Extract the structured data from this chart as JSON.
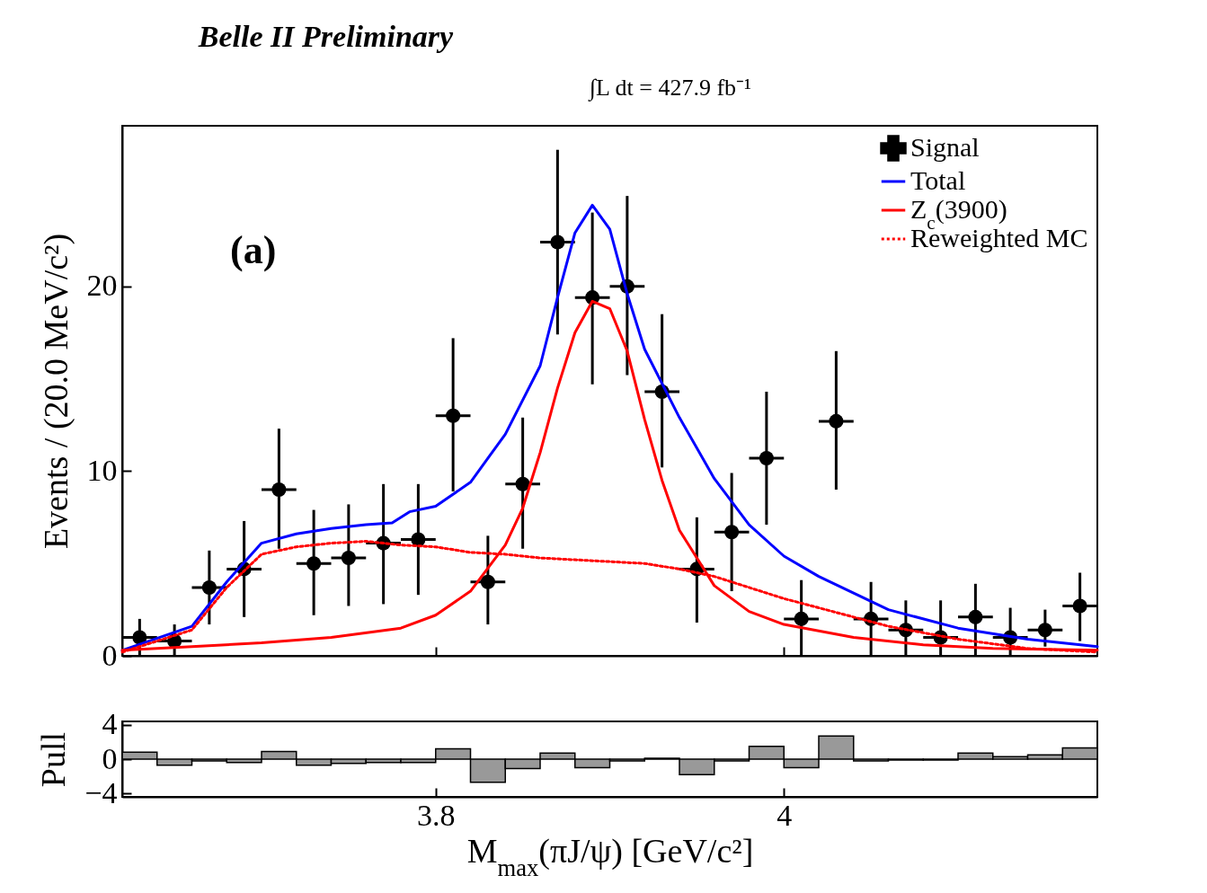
{
  "chart_data": [
    {
      "type": "scatter",
      "title": "Belle II Preliminary",
      "annotations": [
        "∫L dt = 427.9 fb⁻¹",
        "(a)"
      ],
      "ylabel": "Events / (20.0 MeV/c²)",
      "xlim": [
        3.62,
        4.18
      ],
      "xticks": [
        {
          "value": 3.8,
          "label": null
        },
        {
          "value": 4,
          "label": null
        }
      ],
      "ylim": [
        0,
        28.7
      ],
      "yticks": [
        0,
        10,
        20
      ],
      "tick_labels": "y",
      "legend": "top right",
      "series": [
        {
          "name": "Signal",
          "type": "scatter",
          "color": "#000000",
          "marker": "circle",
          "x": [
            3.63,
            3.65,
            3.67,
            3.69,
            3.71,
            3.73,
            3.75,
            3.77,
            3.79,
            3.81,
            3.83,
            3.85,
            3.87,
            3.89,
            3.91,
            3.93,
            3.95,
            3.97,
            3.99,
            4.01,
            4.03,
            4.05,
            4.07,
            4.09,
            4.11,
            4.13,
            4.15,
            4.17
          ],
          "values": [
            1.0,
            0.8,
            3.7,
            4.7,
            9.0,
            5.0,
            5.3,
            6.1,
            6.3,
            13.0,
            4.0,
            9.3,
            22.4,
            19.4,
            20.0,
            14.3,
            4.7,
            6.7,
            10.7,
            2.0,
            12.7,
            2.0,
            1.4,
            1.0,
            2.1,
            1.0,
            1.4,
            2.7
          ],
          "errors": [
            [
              0,
              2.0
            ],
            [
              0,
              1.7
            ],
            [
              1.7,
              5.7
            ],
            [
              2.1,
              7.3
            ],
            [
              5.8,
              12.3
            ],
            [
              2.2,
              7.9
            ],
            [
              2.7,
              8.2
            ],
            [
              2.8,
              9.3
            ],
            [
              3.3,
              9.3
            ],
            [
              8.9,
              17.2
            ],
            [
              1.7,
              6.5
            ],
            [
              5.8,
              12.9
            ],
            [
              17.4,
              27.4
            ],
            [
              14.7,
              24.0
            ],
            [
              15.2,
              24.9
            ],
            [
              10.2,
              18.5
            ],
            [
              1.8,
              7.5
            ],
            [
              3.5,
              9.9
            ],
            [
              7.1,
              14.3
            ],
            [
              0,
              4.1
            ],
            [
              9.0,
              16.5
            ],
            [
              0,
              4.0
            ],
            [
              0,
              3.0
            ],
            [
              0,
              3.0
            ],
            [
              0,
              3.9
            ],
            [
              0,
              2.6
            ],
            [
              0.5,
              2.5
            ],
            [
              0.8,
              4.5
            ]
          ],
          "xerrors": [
            0.01,
            0.01,
            0.01,
            0.01,
            0.01,
            0.01,
            0.01,
            0.01,
            0.01,
            0.01,
            0.01,
            0.01,
            0.01,
            0.01,
            0.01,
            0.01,
            0.01,
            0.01,
            0.01,
            0.01,
            0.01,
            0.01,
            0.01,
            0.01,
            0.01,
            0.01,
            0.01,
            0.01
          ]
        },
        {
          "name": "Total",
          "type": "line",
          "color": "#0000ff",
          "line_style": "solid",
          "x": [
            3.62,
            3.66,
            3.68,
            3.7,
            3.72,
            3.74,
            3.76,
            3.775,
            3.785,
            3.8,
            3.82,
            3.84,
            3.86,
            3.87,
            3.88,
            3.89,
            3.9,
            3.91,
            3.92,
            3.94,
            3.96,
            3.98,
            4.0,
            4.02,
            4.06,
            4.1,
            4.14,
            4.18
          ],
          "values": [
            0.3,
            1.6,
            4.0,
            6.1,
            6.6,
            6.9,
            7.1,
            7.2,
            7.8,
            8.1,
            9.4,
            12.0,
            15.7,
            19.4,
            22.9,
            24.4,
            23.1,
            19.6,
            16.6,
            12.9,
            9.6,
            7.1,
            5.4,
            4.3,
            2.5,
            1.5,
            0.9,
            0.5
          ]
        },
        {
          "name": "Z$_{c}$(3900)",
          "type": "line",
          "color": "#ff0000",
          "line_style": "solid",
          "x": [
            3.62,
            3.66,
            3.7,
            3.74,
            3.78,
            3.8,
            3.82,
            3.84,
            3.85,
            3.86,
            3.87,
            3.88,
            3.89,
            3.9,
            3.91,
            3.92,
            3.93,
            3.94,
            3.96,
            3.98,
            4.0,
            4.04,
            4.08,
            4.12,
            4.18
          ],
          "values": [
            0.3,
            0.5,
            0.7,
            1.0,
            1.5,
            2.2,
            3.5,
            6.0,
            8.0,
            11.0,
            14.5,
            17.5,
            19.2,
            18.8,
            16.5,
            12.8,
            9.5,
            6.8,
            3.8,
            2.4,
            1.7,
            1.0,
            0.6,
            0.4,
            0.3
          ]
        },
        {
          "name": "Reweighted MC",
          "type": "line",
          "color": "#ff0000",
          "line_style": "dotted",
          "x": [
            3.62,
            3.66,
            3.68,
            3.7,
            3.72,
            3.74,
            3.76,
            3.78,
            3.8,
            3.82,
            3.84,
            3.86,
            3.88,
            3.9,
            3.92,
            3.94,
            3.96,
            3.98,
            4.0,
            4.02,
            4.04,
            4.06,
            4.1,
            4.14,
            4.18
          ],
          "values": [
            0.2,
            1.4,
            3.7,
            5.5,
            5.9,
            6.1,
            6.2,
            6.0,
            5.9,
            5.6,
            5.5,
            5.3,
            5.2,
            5.1,
            5.0,
            4.7,
            4.3,
            3.7,
            3.1,
            2.6,
            2.1,
            1.6,
            0.9,
            0.4,
            0.2
          ]
        }
      ]
    },
    {
      "type": "histogram",
      "ylabel": "Pull",
      "xlabel": "M$_{max}$(πJ/ψ) [GeV/c²]",
      "color": "#999999",
      "xlim": [
        3.62,
        4.18
      ],
      "xticks": [
        3.8,
        4
      ],
      "ylim": [
        -4.4,
        4.4
      ],
      "yticks": [
        4,
        0,
        {
          "value": -4,
          "label": "−4"
        }
      ],
      "bins": [
        3.62,
        3.64,
        3.66,
        3.68,
        3.7,
        3.72,
        3.74,
        3.76,
        3.78,
        3.8,
        3.82,
        3.84,
        3.86,
        3.88,
        3.9,
        3.92,
        3.94,
        3.96,
        3.98,
        4.0,
        4.02,
        4.04,
        4.06,
        4.08,
        4.1,
        4.12,
        4.14,
        4.16,
        4.18
      ],
      "values": [
        0.8,
        -0.7,
        -0.2,
        -0.4,
        0.9,
        -0.7,
        -0.5,
        -0.4,
        -0.4,
        1.2,
        -2.7,
        -1.1,
        0.7,
        -1.0,
        -0.2,
        0.1,
        -1.8,
        -0.2,
        1.5,
        -1.0,
        2.7,
        -0.2,
        -0.1,
        -0.1,
        0.7,
        0.3,
        0.5,
        1.3
      ]
    }
  ]
}
